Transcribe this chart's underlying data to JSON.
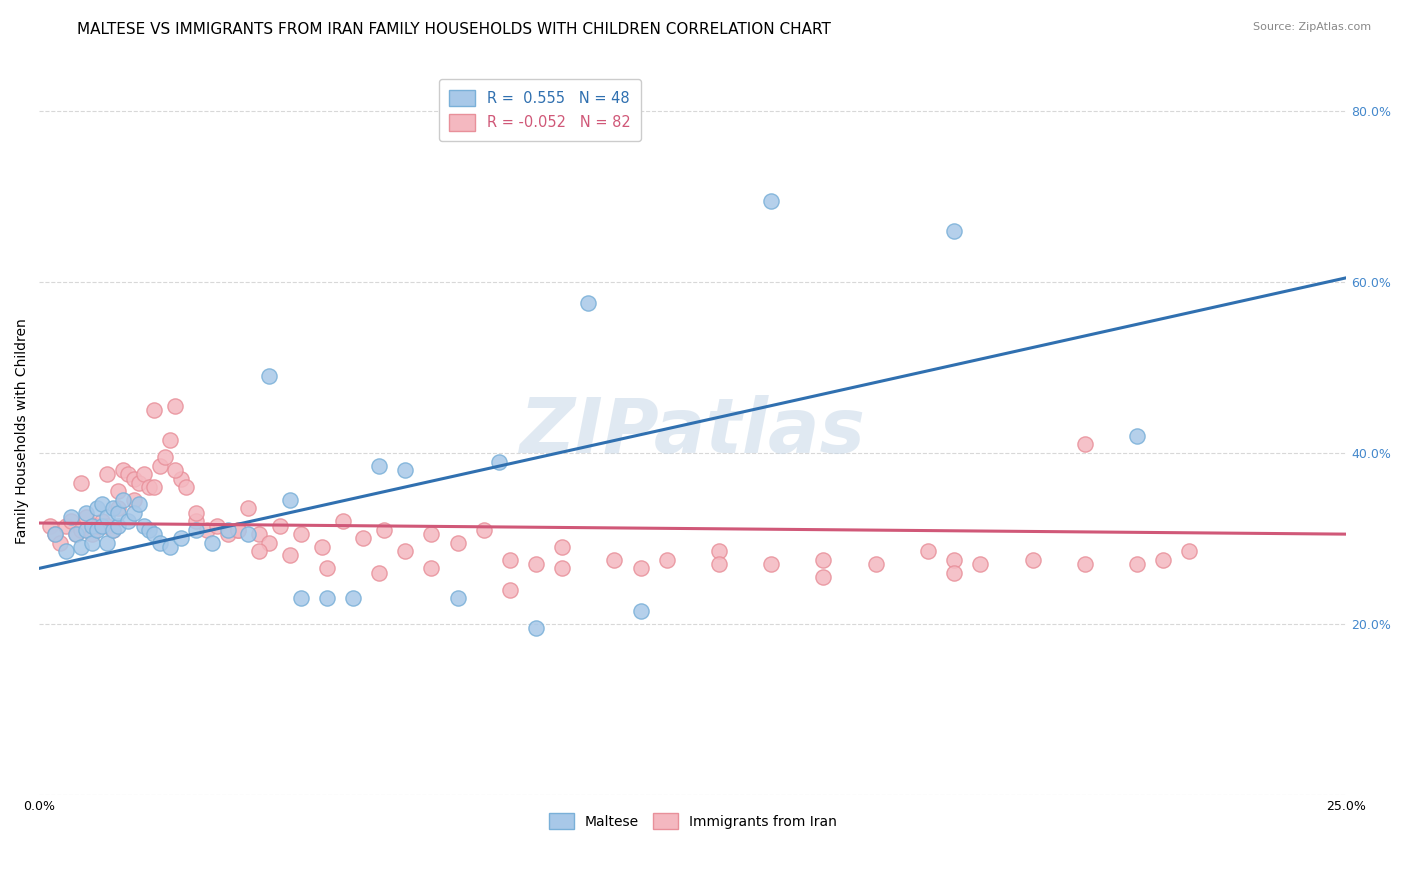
{
  "title": "MALTESE VS IMMIGRANTS FROM IRAN FAMILY HOUSEHOLDS WITH CHILDREN CORRELATION CHART",
  "source": "Source: ZipAtlas.com",
  "ylabel": "Family Households with Children",
  "xlim": [
    0.0,
    0.25
  ],
  "ylim": [
    0.0,
    0.85
  ],
  "xticks": [
    0.0,
    0.05,
    0.1,
    0.15,
    0.2,
    0.25
  ],
  "xticklabels": [
    "0.0%",
    "",
    "",
    "",
    "",
    "25.0%"
  ],
  "yticks": [
    0.0,
    0.2,
    0.4,
    0.6,
    0.8
  ],
  "yticklabels": [
    "",
    "20.0%",
    "40.0%",
    "60.0%",
    "80.0%"
  ],
  "legend_blue_label": "R =  0.555   N = 48",
  "legend_pink_label": "R = -0.052   N = 82",
  "blue_color": "#a8c8e8",
  "pink_color": "#f4b8c0",
  "blue_edge_color": "#7ab0d8",
  "pink_edge_color": "#e8909a",
  "blue_line_color": "#3070b0",
  "pink_line_color": "#d05878",
  "watermark": "ZIPatlas",
  "blue_scatter_x": [
    0.003,
    0.005,
    0.006,
    0.007,
    0.008,
    0.009,
    0.009,
    0.01,
    0.01,
    0.011,
    0.011,
    0.012,
    0.012,
    0.013,
    0.013,
    0.014,
    0.014,
    0.015,
    0.015,
    0.016,
    0.017,
    0.018,
    0.019,
    0.02,
    0.021,
    0.022,
    0.023,
    0.025,
    0.027,
    0.03,
    0.033,
    0.036,
    0.04,
    0.044,
    0.048,
    0.05,
    0.055,
    0.06,
    0.065,
    0.07,
    0.08,
    0.088,
    0.095,
    0.105,
    0.115,
    0.14,
    0.175,
    0.21
  ],
  "blue_scatter_y": [
    0.305,
    0.285,
    0.325,
    0.305,
    0.29,
    0.31,
    0.33,
    0.295,
    0.315,
    0.31,
    0.335,
    0.315,
    0.34,
    0.295,
    0.325,
    0.31,
    0.335,
    0.315,
    0.33,
    0.345,
    0.32,
    0.33,
    0.34,
    0.315,
    0.31,
    0.305,
    0.295,
    0.29,
    0.3,
    0.31,
    0.295,
    0.31,
    0.305,
    0.49,
    0.345,
    0.23,
    0.23,
    0.23,
    0.385,
    0.38,
    0.23,
    0.39,
    0.195,
    0.575,
    0.215,
    0.695,
    0.66,
    0.42
  ],
  "pink_scatter_x": [
    0.002,
    0.003,
    0.004,
    0.005,
    0.006,
    0.007,
    0.008,
    0.009,
    0.01,
    0.011,
    0.012,
    0.013,
    0.014,
    0.015,
    0.016,
    0.017,
    0.018,
    0.019,
    0.02,
    0.021,
    0.022,
    0.023,
    0.024,
    0.025,
    0.026,
    0.027,
    0.028,
    0.03,
    0.032,
    0.034,
    0.036,
    0.038,
    0.04,
    0.042,
    0.044,
    0.046,
    0.05,
    0.054,
    0.058,
    0.062,
    0.066,
    0.07,
    0.075,
    0.08,
    0.085,
    0.09,
    0.095,
    0.1,
    0.11,
    0.12,
    0.13,
    0.14,
    0.15,
    0.16,
    0.17,
    0.175,
    0.18,
    0.19,
    0.2,
    0.21,
    0.215,
    0.22,
    0.008,
    0.013,
    0.015,
    0.018,
    0.022,
    0.026,
    0.03,
    0.038,
    0.042,
    0.048,
    0.055,
    0.065,
    0.075,
    0.09,
    0.1,
    0.115,
    0.13,
    0.15,
    0.175,
    0.2
  ],
  "pink_scatter_y": [
    0.315,
    0.305,
    0.295,
    0.315,
    0.32,
    0.305,
    0.31,
    0.325,
    0.305,
    0.315,
    0.32,
    0.315,
    0.31,
    0.335,
    0.38,
    0.375,
    0.37,
    0.365,
    0.375,
    0.36,
    0.45,
    0.385,
    0.395,
    0.415,
    0.455,
    0.37,
    0.36,
    0.32,
    0.31,
    0.315,
    0.305,
    0.31,
    0.335,
    0.305,
    0.295,
    0.315,
    0.305,
    0.29,
    0.32,
    0.3,
    0.31,
    0.285,
    0.305,
    0.295,
    0.31,
    0.275,
    0.27,
    0.29,
    0.275,
    0.275,
    0.285,
    0.27,
    0.275,
    0.27,
    0.285,
    0.275,
    0.27,
    0.275,
    0.27,
    0.27,
    0.275,
    0.285,
    0.365,
    0.375,
    0.355,
    0.345,
    0.36,
    0.38,
    0.33,
    0.31,
    0.285,
    0.28,
    0.265,
    0.26,
    0.265,
    0.24,
    0.265,
    0.265,
    0.27,
    0.255,
    0.26,
    0.41
  ],
  "blue_trendline_x": [
    0.0,
    0.25
  ],
  "blue_trendline_y": [
    0.265,
    0.605
  ],
  "pink_trendline_x": [
    0.0,
    0.25
  ],
  "pink_trendline_y": [
    0.318,
    0.305
  ],
  "background_color": "#ffffff",
  "grid_color": "#d8d8d8",
  "title_fontsize": 11,
  "axis_label_fontsize": 10,
  "tick_fontsize": 9,
  "right_tick_color": "#4488cc"
}
